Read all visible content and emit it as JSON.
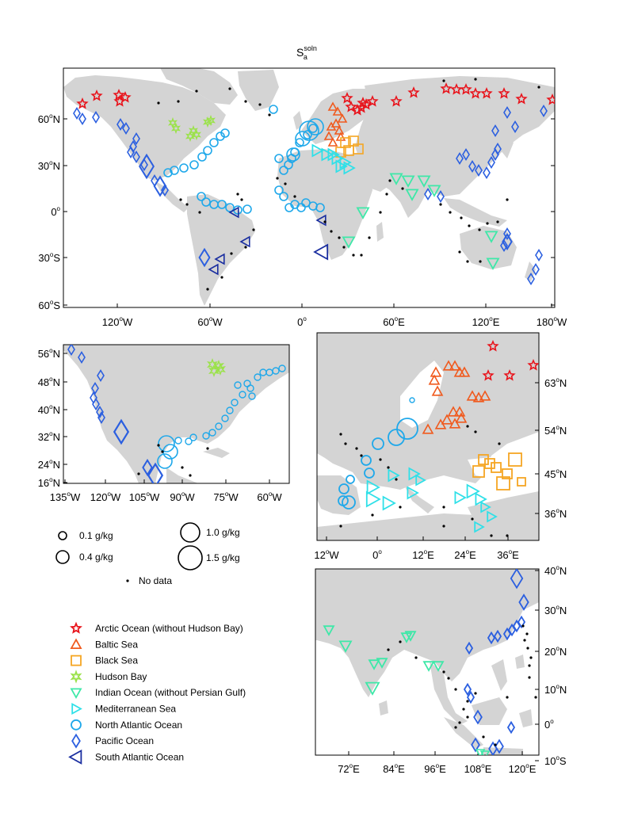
{
  "title": {
    "base": "S",
    "sup": "soln",
    "sub": "a"
  },
  "colors": {
    "land": "#d4d4d4",
    "arctic": "#e8141c",
    "baltic": "#f05a1e",
    "black": "#f5a623",
    "hudson": "#9be24a",
    "indian": "#3ee8a8",
    "med": "#2fe0e8",
    "natl": "#1fa8ea",
    "pacific": "#2b5fe0",
    "satl": "#1a2ea0",
    "nodata": "#000000"
  },
  "world_axes": {
    "x_ticks": [
      {
        "v": "120",
        "d": "o",
        "h": "W"
      },
      {
        "v": "60",
        "d": "o",
        "h": "W"
      },
      {
        "v": "0",
        "d": "o",
        "h": ""
      },
      {
        "v": "60",
        "d": "o",
        "h": "E"
      },
      {
        "v": "120",
        "d": "o",
        "h": "E"
      },
      {
        "v": "180",
        "d": "o",
        "h": "W"
      }
    ],
    "y_ticks": [
      {
        "v": "60",
        "d": "o",
        "h": "N"
      },
      {
        "v": "30",
        "d": "o",
        "h": "N"
      },
      {
        "v": "0",
        "d": "o",
        "h": ""
      },
      {
        "v": "30",
        "d": "o",
        "h": "S"
      },
      {
        "v": "60",
        "d": "o",
        "h": "S"
      }
    ]
  },
  "na_axes": {
    "x_ticks": [
      {
        "v": "135",
        "d": "o",
        "h": "W"
      },
      {
        "v": "120",
        "d": "o",
        "h": "W"
      },
      {
        "v": "105",
        "d": "o",
        "h": "W"
      },
      {
        "v": "90",
        "d": "o",
        "h": "W"
      },
      {
        "v": "75",
        "d": "o",
        "h": "W"
      },
      {
        "v": "60",
        "d": "o",
        "h": "W"
      }
    ],
    "y_ticks": [
      {
        "v": "56",
        "d": "o",
        "h": "N"
      },
      {
        "v": "48",
        "d": "o",
        "h": "N"
      },
      {
        "v": "40",
        "d": "o",
        "h": "N"
      },
      {
        "v": "32",
        "d": "o",
        "h": "N"
      },
      {
        "v": "24",
        "d": "o",
        "h": "N"
      },
      {
        "v": "16",
        "d": "o",
        "h": "N"
      }
    ]
  },
  "eu_axes": {
    "x_ticks": [
      {
        "v": "12",
        "d": "o",
        "h": "W"
      },
      {
        "v": "0",
        "d": "o",
        "h": ""
      },
      {
        "v": "12",
        "d": "o",
        "h": "E"
      },
      {
        "v": "24",
        "d": "o",
        "h": "E"
      },
      {
        "v": "36",
        "d": "o",
        "h": "E"
      }
    ],
    "y_ticks": [
      {
        "v": "63",
        "d": "o",
        "h": "N"
      },
      {
        "v": "54",
        "d": "o",
        "h": "N"
      },
      {
        "v": "45",
        "d": "o",
        "h": "N"
      },
      {
        "v": "36",
        "d": "o",
        "h": "N"
      }
    ]
  },
  "as_axes": {
    "x_ticks": [
      {
        "v": "72",
        "d": "o",
        "h": "E"
      },
      {
        "v": "84",
        "d": "o",
        "h": "E"
      },
      {
        "v": "96",
        "d": "o",
        "h": "E"
      },
      {
        "v": "108",
        "d": "o",
        "h": "E"
      },
      {
        "v": "120",
        "d": "o",
        "h": "E"
      }
    ],
    "y_ticks": [
      {
        "v": "40",
        "d": "o",
        "h": "N"
      },
      {
        "v": "30",
        "d": "o",
        "h": "N"
      },
      {
        "v": "20",
        "d": "o",
        "h": "N"
      },
      {
        "v": "10",
        "d": "o",
        "h": "N"
      },
      {
        "v": "0",
        "d": "o",
        "h": ""
      },
      {
        "v": "10",
        "d": "o",
        "h": "S"
      }
    ]
  },
  "size_legend": [
    {
      "label": "0.1 g/kg",
      "value": 0.1
    },
    {
      "label": "0.4 g/kg",
      "value": 0.4
    },
    {
      "label": "1.0 g/kg",
      "value": 1.0
    },
    {
      "label": "1.5 g/kg",
      "value": 1.5
    }
  ],
  "no_data_label": "No data",
  "basin_legend": [
    {
      "label": "Arctic Ocean (without Hudson Bay)",
      "shape": "star",
      "color": "#e8141c"
    },
    {
      "label": "Baltic Sea",
      "shape": "tri-up",
      "color": "#f05a1e"
    },
    {
      "label": "Black Sea",
      "shape": "square",
      "color": "#f5a623"
    },
    {
      "label": "Hudson Bay",
      "shape": "hexstar",
      "color": "#9be24a"
    },
    {
      "label": "Indian Ocean (without Persian Gulf)",
      "shape": "tri-down",
      "color": "#3ee8a8"
    },
    {
      "label": "Mediterranean Sea",
      "shape": "tri-right",
      "color": "#2fe0e8"
    },
    {
      "label": "North Atlantic Ocean",
      "shape": "circle",
      "color": "#1fa8ea"
    },
    {
      "label": "Pacific Ocean",
      "shape": "diamond",
      "color": "#2b5fe0"
    },
    {
      "label": "South Atlantic Ocean",
      "shape": "tri-left",
      "color": "#1a2ea0"
    }
  ]
}
